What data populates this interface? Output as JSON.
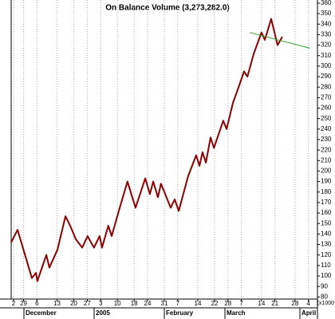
{
  "chart_data": {
    "type": "line",
    "title": "On Balance Volume (3,273,282.0)",
    "unit_label": "(x1000",
    "months": [
      "December",
      "2005",
      "February",
      "March",
      "April"
    ],
    "xlim": [
      -0.7,
      90.7
    ],
    "xticks": [
      {
        "value": 0,
        "label": "2"
      },
      {
        "value": 3,
        "label": "29"
      },
      {
        "value": 7,
        "label": "6"
      },
      {
        "value": 13,
        "label": "13"
      },
      {
        "value": 18,
        "label": "20"
      },
      {
        "value": 22,
        "label": "27"
      },
      {
        "value": 26,
        "label": "3"
      },
      {
        "value": 31,
        "label": "10"
      },
      {
        "value": 36,
        "label": "18"
      },
      {
        "value": 40,
        "label": "24"
      },
      {
        "value": 45,
        "label": "31"
      },
      {
        "value": 49,
        "label": "7"
      },
      {
        "value": 55,
        "label": "14"
      },
      {
        "value": 60,
        "label": "22"
      },
      {
        "value": 64,
        "label": "28"
      },
      {
        "value": 68,
        "label": "7"
      },
      {
        "value": 74,
        "label": "14"
      },
      {
        "value": 78,
        "label": "21"
      },
      {
        "value": 84,
        "label": "28"
      },
      {
        "value": 88,
        "label": "4"
      }
    ],
    "ylim": [
      78,
      363
    ],
    "yticks": [
      80,
      90,
      100,
      110,
      120,
      130,
      140,
      150,
      160,
      170,
      180,
      190,
      200,
      210,
      220,
      230,
      240,
      250,
      260,
      270,
      280,
      290,
      300,
      310,
      320,
      330,
      340,
      350,
      360
    ],
    "grid": true,
    "series": [
      {
        "color": "#8b0000",
        "x": [
          -0.7,
          1.2,
          5.5,
          6.7,
          7.1,
          9.8,
          10.7,
          13.1,
          15.5,
          16.9,
          18.6,
          20.5,
          22.1,
          24.0,
          25.7,
          26.4,
          28.3,
          29.3,
          31.7,
          34.0,
          36.4,
          39.3,
          40.7,
          41.7,
          43.1,
          44.0,
          46.9,
          48.1,
          49.3,
          52.1,
          54.5,
          55.5,
          56.4,
          57.4,
          58.8,
          59.8,
          62.6,
          63.6,
          65.5,
          67.4,
          68.8,
          69.8,
          71.7,
          74.0,
          75.0,
          76.9,
          78.8,
          80.2
        ],
        "values": [
          132,
          144,
          98,
          103,
          95,
          120,
          108,
          125,
          157,
          148,
          135,
          127,
          138,
          127,
          138,
          127,
          148,
          138,
          165,
          190,
          165,
          193,
          178,
          190,
          175,
          188,
          165,
          173,
          162,
          195,
          215,
          205,
          218,
          208,
          232,
          222,
          248,
          240,
          265,
          282,
          295,
          290,
          312,
          332,
          325,
          345,
          320,
          328
        ]
      }
    ],
    "trendline": {
      "color": "#2e9e2e",
      "x": [
        70.5,
        88.5
      ],
      "values": [
        332,
        317
      ]
    }
  }
}
